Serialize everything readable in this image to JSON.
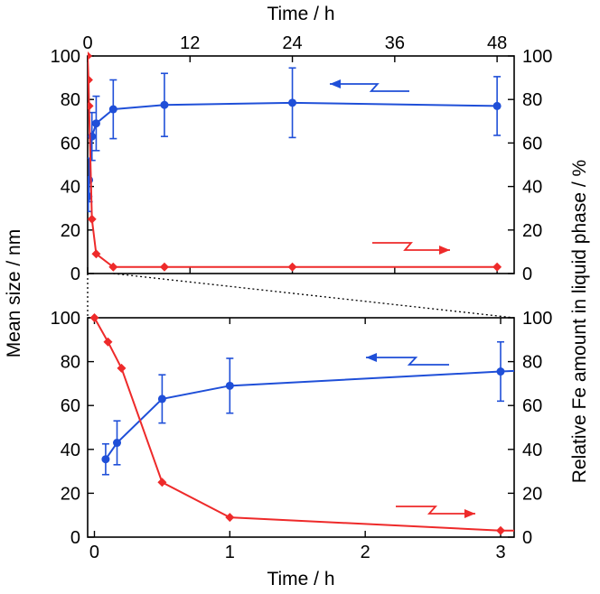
{
  "colors": {
    "size_series": "#1f4fd8",
    "fe_series": "#ee2a2a",
    "axis": "#000000"
  },
  "labels": {
    "top_xlabel": "Time / h",
    "bottom_xlabel": "Time / h",
    "left_ylabel": "Mean size / nm",
    "right_ylabel": "Relative Fe amount in liquid phase / %"
  },
  "chart_data": [
    {
      "id": "top",
      "type": "line",
      "xlabel": "Time / h",
      "x_axis_position": "top",
      "xlim": [
        0,
        50
      ],
      "xticks": [
        0,
        12,
        24,
        36,
        48
      ],
      "ylabel_left": "Mean size / nm",
      "ylabel_right": "Relative Fe amount in liquid phase / %",
      "ylim": [
        0,
        100
      ],
      "yticks": [
        0,
        20,
        40,
        60,
        80,
        100
      ],
      "grid": false,
      "series": [
        {
          "axis": "left",
          "marker": "circle",
          "x": [
            0.083,
            0.167,
            0.5,
            1,
            3,
            9,
            24,
            48
          ],
          "y": [
            35.5,
            43,
            63,
            69,
            75.5,
            77.5,
            78.5,
            77
          ],
          "err": [
            7,
            10,
            11,
            12.5,
            13.5,
            14.5,
            16,
            13.5
          ]
        },
        {
          "axis": "right",
          "marker": "diamond",
          "x": [
            0,
            0.1,
            0.167,
            0.5,
            1,
            3,
            9,
            24,
            48
          ],
          "y": [
            100,
            89,
            77,
            25,
            9,
            3,
            3,
            3,
            3
          ]
        }
      ],
      "annotations": [
        "arrow-left",
        "arrow-right"
      ]
    },
    {
      "id": "bottom",
      "type": "line",
      "xlabel": "Time / h",
      "x_axis_position": "bottom",
      "xlim": [
        -0.05,
        3.1
      ],
      "xticks": [
        0,
        1,
        2,
        3
      ],
      "ylabel_left": "Mean size / nm",
      "ylabel_right": "Relative Fe amount in liquid phase / %",
      "ylim": [
        0,
        100
      ],
      "yticks": [
        0,
        20,
        40,
        60,
        80,
        100
      ],
      "grid": false,
      "series": [
        {
          "axis": "left",
          "marker": "circle",
          "x": [
            0.083,
            0.167,
            0.5,
            1,
            3,
            3.2
          ],
          "y": [
            35.5,
            43,
            63,
            69,
            75.5,
            76
          ],
          "err": [
            7,
            10,
            11,
            12.5,
            13.5,
            null
          ]
        },
        {
          "axis": "right",
          "marker": "diamond",
          "x": [
            0,
            0.1,
            0.2,
            0.5,
            1,
            3,
            3.2
          ],
          "y": [
            100,
            89,
            77,
            25,
            9,
            3,
            3
          ]
        }
      ],
      "annotations": [
        "arrow-left",
        "arrow-right"
      ]
    }
  ]
}
